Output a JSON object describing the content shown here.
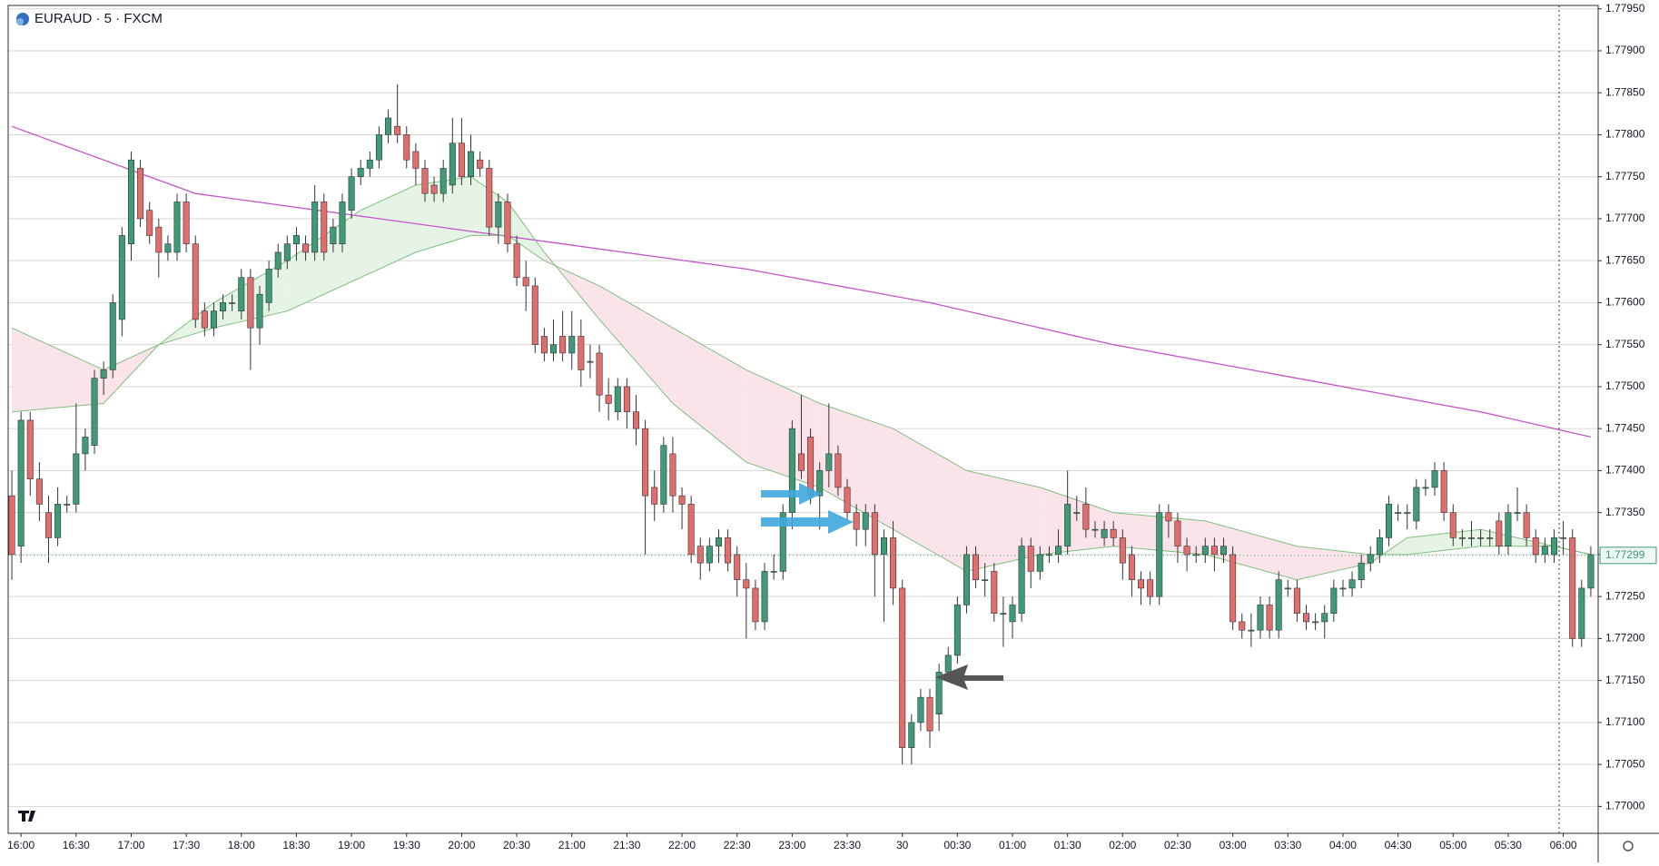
{
  "chart_data": {
    "type": "candlestick",
    "title": "EURAUD · 5 · FXCM",
    "up_color": "#3f9a78",
    "down_color": "#e26d6d",
    "grid": true,
    "band_colors": [
      "#e6f4e6",
      "#fbe3ea"
    ],
    "xlim": [
      -0.4,
      172.8
    ],
    "ylim": [
      1.76968,
      1.77954
    ],
    "yticks": [
      {
        "value": 1.77,
        "label": "1.77000"
      },
      {
        "value": 1.7705,
        "label": "1.77050"
      },
      {
        "value": 1.771,
        "label": "1.77100"
      },
      {
        "value": 1.7715,
        "label": "1.77150"
      },
      {
        "value": 1.772,
        "label": "1.77200"
      },
      {
        "value": 1.7725,
        "label": "1.77250"
      },
      {
        "value": 1.773,
        "label": "1.77300"
      },
      {
        "value": 1.7735,
        "label": "1.77350"
      },
      {
        "value": 1.774,
        "label": "1.77400"
      },
      {
        "value": 1.7745,
        "label": "1.77450"
      },
      {
        "value": 1.775,
        "label": "1.77500"
      },
      {
        "value": 1.7755,
        "label": "1.77550"
      },
      {
        "value": 1.776,
        "label": "1.77600"
      },
      {
        "value": 1.7765,
        "label": "1.77650"
      },
      {
        "value": 1.777,
        "label": "1.77700"
      },
      {
        "value": 1.7775,
        "label": "1.77750"
      },
      {
        "value": 1.778,
        "label": "1.77800"
      },
      {
        "value": 1.7785,
        "label": "1.77850"
      },
      {
        "value": 1.779,
        "label": "1.77900"
      },
      {
        "value": 1.7795,
        "label": "1.77950"
      }
    ],
    "xticks": [
      {
        "value": 1,
        "label": "16:00"
      },
      {
        "value": 7,
        "label": "16:30"
      },
      {
        "value": 13,
        "label": "17:00"
      },
      {
        "value": 19,
        "label": "17:30"
      },
      {
        "value": 25,
        "label": "18:00"
      },
      {
        "value": 31,
        "label": "18:30"
      },
      {
        "value": 37,
        "label": "19:00"
      },
      {
        "value": 43,
        "label": "19:30"
      },
      {
        "value": 49,
        "label": "20:00"
      },
      {
        "value": 55,
        "label": "20:30"
      },
      {
        "value": 61,
        "label": "21:00"
      },
      {
        "value": 67,
        "label": "21:30"
      },
      {
        "value": 73,
        "label": "22:00"
      },
      {
        "value": 79,
        "label": "22:30"
      },
      {
        "value": 85,
        "label": "23:00"
      },
      {
        "value": 91,
        "label": "23:30"
      },
      {
        "value": 97,
        "label": "30"
      },
      {
        "value": 103,
        "label": "00:30"
      },
      {
        "value": 109,
        "label": "01:00"
      },
      {
        "value": 115,
        "label": "01:30"
      },
      {
        "value": 121,
        "label": "02:00"
      },
      {
        "value": 127,
        "label": "02:30"
      },
      {
        "value": 133,
        "label": "03:00"
      },
      {
        "value": 139,
        "label": "03:30"
      },
      {
        "value": 145,
        "label": "04:00"
      },
      {
        "value": 151,
        "label": "04:30"
      },
      {
        "value": 157,
        "label": "05:00"
      },
      {
        "value": 163,
        "label": "05:30"
      },
      {
        "value": 169,
        "label": "06:00"
      }
    ],
    "last_price": 1.77299,
    "candles": [
      [
        1.7737,
        1.774,
        1.7727,
        1.773
      ],
      [
        1.7731,
        1.7747,
        1.7729,
        1.7746
      ],
      [
        1.7746,
        1.7747,
        1.7737,
        1.7739
      ],
      [
        1.7739,
        1.7741,
        1.7734,
        1.7736
      ],
      [
        1.7735,
        1.7737,
        1.7729,
        1.7732
      ],
      [
        1.7732,
        1.7738,
        1.7731,
        1.7736
      ],
      [
        1.7736,
        1.7737,
        1.7735,
        1.7736
      ],
      [
        1.7736,
        1.7748,
        1.7735,
        1.7742
      ],
      [
        1.7742,
        1.7745,
        1.774,
        1.7744
      ],
      [
        1.7743,
        1.7752,
        1.7742,
        1.7751
      ],
      [
        1.7751,
        1.7753,
        1.7749,
        1.7752
      ],
      [
        1.7752,
        1.7761,
        1.7751,
        1.776
      ],
      [
        1.7758,
        1.7769,
        1.7756,
        1.7768
      ],
      [
        1.7767,
        1.7778,
        1.7765,
        1.7777
      ],
      [
        1.7776,
        1.7777,
        1.7769,
        1.777
      ],
      [
        1.7771,
        1.7772,
        1.7767,
        1.7768
      ],
      [
        1.7769,
        1.777,
        1.7763,
        1.7766
      ],
      [
        1.7766,
        1.7768,
        1.7765,
        1.7767
      ],
      [
        1.7766,
        1.7773,
        1.7765,
        1.7772
      ],
      [
        1.7772,
        1.7773,
        1.7766,
        1.7767
      ],
      [
        1.7767,
        1.7768,
        1.7757,
        1.7758
      ],
      [
        1.7759,
        1.776,
        1.7756,
        1.7757
      ],
      [
        1.7757,
        1.776,
        1.7756,
        1.7759
      ],
      [
        1.7759,
        1.7761,
        1.7758,
        1.776
      ],
      [
        1.776,
        1.7761,
        1.7759,
        1.776
      ],
      [
        1.7759,
        1.7764,
        1.7758,
        1.7763
      ],
      [
        1.7763,
        1.7764,
        1.7752,
        1.7757
      ],
      [
        1.7757,
        1.7762,
        1.7755,
        1.7761
      ],
      [
        1.776,
        1.7765,
        1.7759,
        1.7764
      ],
      [
        1.7764,
        1.7767,
        1.7763,
        1.7766
      ],
      [
        1.7765,
        1.7768,
        1.7764,
        1.7767
      ],
      [
        1.7767,
        1.7769,
        1.7765,
        1.7768
      ],
      [
        1.7767,
        1.7768,
        1.7765,
        1.7766
      ],
      [
        1.7766,
        1.7774,
        1.7765,
        1.7772
      ],
      [
        1.7772,
        1.7773,
        1.7765,
        1.7766
      ],
      [
        1.7767,
        1.777,
        1.7766,
        1.7769
      ],
      [
        1.7767,
        1.7773,
        1.7766,
        1.7772
      ],
      [
        1.7771,
        1.7776,
        1.777,
        1.7775
      ],
      [
        1.7775,
        1.7777,
        1.7774,
        1.7776
      ],
      [
        1.7776,
        1.7778,
        1.7775,
        1.7777
      ],
      [
        1.7777,
        1.7781,
        1.7776,
        1.778
      ],
      [
        1.778,
        1.7783,
        1.7779,
        1.7782
      ],
      [
        1.7781,
        1.7786,
        1.7779,
        1.778
      ],
      [
        1.778,
        1.7781,
        1.7776,
        1.7777
      ],
      [
        1.7778,
        1.7779,
        1.7774,
        1.7776
      ],
      [
        1.7776,
        1.7777,
        1.7772,
        1.7773
      ],
      [
        1.7774,
        1.7775,
        1.7772,
        1.7773
      ],
      [
        1.7773,
        1.7777,
        1.7772,
        1.7776
      ],
      [
        1.7774,
        1.7782,
        1.7773,
        1.7779
      ],
      [
        1.7779,
        1.7782,
        1.7774,
        1.7775
      ],
      [
        1.7775,
        1.778,
        1.7774,
        1.7778
      ],
      [
        1.7777,
        1.7778,
        1.7775,
        1.7776
      ],
      [
        1.7776,
        1.7777,
        1.7768,
        1.7769
      ],
      [
        1.7769,
        1.7773,
        1.7767,
        1.7772
      ],
      [
        1.7772,
        1.7773,
        1.7766,
        1.7767
      ],
      [
        1.7767,
        1.7768,
        1.7762,
        1.7763
      ],
      [
        1.7763,
        1.7765,
        1.7759,
        1.7762
      ],
      [
        1.7762,
        1.7763,
        1.7754,
        1.7755
      ],
      [
        1.7756,
        1.7757,
        1.7753,
        1.7754
      ],
      [
        1.7754,
        1.7758,
        1.7753,
        1.7755
      ],
      [
        1.7756,
        1.7759,
        1.7753,
        1.7754
      ],
      [
        1.7754,
        1.7759,
        1.7752,
        1.7756
      ],
      [
        1.7756,
        1.7758,
        1.775,
        1.7752
      ],
      [
        1.7753,
        1.7755,
        1.7751,
        1.7753
      ],
      [
        1.7754,
        1.7755,
        1.7747,
        1.7749
      ],
      [
        1.7749,
        1.7751,
        1.7746,
        1.7748
      ],
      [
        1.7747,
        1.7751,
        1.7746,
        1.775
      ],
      [
        1.775,
        1.7751,
        1.7745,
        1.7747
      ],
      [
        1.7747,
        1.7749,
        1.7743,
        1.7745
      ],
      [
        1.7745,
        1.7746,
        1.773,
        1.7737
      ],
      [
        1.7738,
        1.774,
        1.7734,
        1.7736
      ],
      [
        1.7736,
        1.7744,
        1.7735,
        1.7743
      ],
      [
        1.7742,
        1.7744,
        1.7735,
        1.7737
      ],
      [
        1.7737,
        1.7738,
        1.7733,
        1.7736
      ],
      [
        1.7736,
        1.7737,
        1.7729,
        1.773
      ],
      [
        1.7731,
        1.7732,
        1.7727,
        1.7729
      ],
      [
        1.7729,
        1.7732,
        1.7728,
        1.7731
      ],
      [
        1.7731,
        1.7733,
        1.7729,
        1.7732
      ],
      [
        1.7732,
        1.7733,
        1.7728,
        1.7729
      ],
      [
        1.773,
        1.7731,
        1.7725,
        1.7727
      ],
      [
        1.7727,
        1.7729,
        1.772,
        1.7726
      ],
      [
        1.7726,
        1.7727,
        1.7721,
        1.7722
      ],
      [
        1.7722,
        1.7729,
        1.7721,
        1.7728
      ],
      [
        1.7728,
        1.773,
        1.7727,
        1.7728
      ],
      [
        1.7728,
        1.7736,
        1.7727,
        1.7735
      ],
      [
        1.7735,
        1.7746,
        1.7733,
        1.7745
      ],
      [
        1.7742,
        1.7749,
        1.7739,
        1.774
      ],
      [
        1.7744,
        1.7745,
        1.7736,
        1.7737
      ],
      [
        1.7737,
        1.7741,
        1.7733,
        1.774
      ],
      [
        1.774,
        1.7748,
        1.7738,
        1.7742
      ],
      [
        1.7742,
        1.7743,
        1.7737,
        1.7738
      ],
      [
        1.7738,
        1.7739,
        1.7734,
        1.7735
      ],
      [
        1.7735,
        1.7736,
        1.7731,
        1.7733
      ],
      [
        1.7733,
        1.7736,
        1.7731,
        1.7735
      ],
      [
        1.7735,
        1.7736,
        1.7725,
        1.773
      ],
      [
        1.773,
        1.7733,
        1.7722,
        1.7732
      ],
      [
        1.7732,
        1.7734,
        1.7724,
        1.7726
      ],
      [
        1.7726,
        1.7727,
        1.7705,
        1.7707
      ],
      [
        1.7707,
        1.7711,
        1.7705,
        1.771
      ],
      [
        1.771,
        1.7714,
        1.7709,
        1.7713
      ],
      [
        1.7713,
        1.7714,
        1.7707,
        1.7709
      ],
      [
        1.7711,
        1.7717,
        1.7709,
        1.7716
      ],
      [
        1.7716,
        1.7719,
        1.7715,
        1.7718
      ],
      [
        1.7718,
        1.7725,
        1.7717,
        1.7724
      ],
      [
        1.7724,
        1.7731,
        1.7723,
        1.773
      ],
      [
        1.773,
        1.7731,
        1.7726,
        1.7727
      ],
      [
        1.7727,
        1.7729,
        1.7725,
        1.7727
      ],
      [
        1.7728,
        1.7729,
        1.7722,
        1.7723
      ],
      [
        1.7723,
        1.7725,
        1.7719,
        1.7723
      ],
      [
        1.7722,
        1.7725,
        1.772,
        1.7724
      ],
      [
        1.7723,
        1.7732,
        1.7722,
        1.7731
      ],
      [
        1.7731,
        1.7732,
        1.7726,
        1.7728
      ],
      [
        1.7728,
        1.7731,
        1.7727,
        1.773
      ],
      [
        1.773,
        1.7731,
        1.7729,
        1.773
      ],
      [
        1.773,
        1.7733,
        1.7729,
        1.7731
      ],
      [
        1.7731,
        1.774,
        1.773,
        1.7736
      ],
      [
        1.7735,
        1.7737,
        1.7734,
        1.7735
      ],
      [
        1.7736,
        1.7738,
        1.7732,
        1.7733
      ],
      [
        1.7733,
        1.7734,
        1.7732,
        1.7733
      ],
      [
        1.7732,
        1.7734,
        1.7731,
        1.7733
      ],
      [
        1.7733,
        1.7734,
        1.7731,
        1.7732
      ],
      [
        1.7732,
        1.7733,
        1.7727,
        1.7729
      ],
      [
        1.773,
        1.7731,
        1.7725,
        1.7727
      ],
      [
        1.7727,
        1.7728,
        1.7724,
        1.7726
      ],
      [
        1.7727,
        1.7728,
        1.7724,
        1.7725
      ],
      [
        1.7725,
        1.7736,
        1.7724,
        1.7735
      ],
      [
        1.7735,
        1.7736,
        1.7732,
        1.7734
      ],
      [
        1.7734,
        1.7735,
        1.7729,
        1.7731
      ],
      [
        1.7731,
        1.7732,
        1.7728,
        1.773
      ],
      [
        1.773,
        1.7731,
        1.7729,
        1.773
      ],
      [
        1.773,
        1.7732,
        1.7729,
        1.7731
      ],
      [
        1.7731,
        1.7732,
        1.7728,
        1.773
      ],
      [
        1.773,
        1.7732,
        1.7729,
        1.7731
      ],
      [
        1.773,
        1.7731,
        1.7721,
        1.7722
      ],
      [
        1.7722,
        1.7723,
        1.772,
        1.7721
      ],
      [
        1.7721,
        1.7723,
        1.7719,
        1.7721
      ],
      [
        1.7721,
        1.7725,
        1.772,
        1.7724
      ],
      [
        1.7724,
        1.7725,
        1.772,
        1.7721
      ],
      [
        1.7721,
        1.7728,
        1.772,
        1.7727
      ],
      [
        1.7726,
        1.7727,
        1.7725,
        1.7726
      ],
      [
        1.7726,
        1.7727,
        1.7722,
        1.7723
      ],
      [
        1.7723,
        1.7724,
        1.7721,
        1.7722
      ],
      [
        1.7722,
        1.7723,
        1.7721,
        1.7722
      ],
      [
        1.7722,
        1.7724,
        1.772,
        1.7723
      ],
      [
        1.7723,
        1.7727,
        1.7722,
        1.7726
      ],
      [
        1.7726,
        1.7727,
        1.7725,
        1.7726
      ],
      [
        1.7726,
        1.7728,
        1.7725,
        1.7727
      ],
      [
        1.7727,
        1.773,
        1.7726,
        1.7729
      ],
      [
        1.7729,
        1.7731,
        1.7728,
        1.773
      ],
      [
        1.773,
        1.7733,
        1.7729,
        1.7732
      ],
      [
        1.7732,
        1.7737,
        1.7731,
        1.7736
      ],
      [
        1.7735,
        1.7736,
        1.7734,
        1.7735
      ],
      [
        1.7735,
        1.7736,
        1.7733,
        1.7735
      ],
      [
        1.7734,
        1.7739,
        1.7733,
        1.7738
      ],
      [
        1.7738,
        1.7739,
        1.7737,
        1.7738
      ],
      [
        1.7738,
        1.7741,
        1.7737,
        1.774
      ],
      [
        1.774,
        1.7741,
        1.7734,
        1.7735
      ],
      [
        1.7735,
        1.7736,
        1.7731,
        1.7732
      ],
      [
        1.7732,
        1.7733,
        1.7731,
        1.7732
      ],
      [
        1.7732,
        1.7734,
        1.7731,
        1.7732
      ],
      [
        1.7732,
        1.7733,
        1.7731,
        1.7732
      ],
      [
        1.7732,
        1.7733,
        1.7731,
        1.7732
      ],
      [
        1.7734,
        1.7735,
        1.773,
        1.7731
      ],
      [
        1.7731,
        1.7736,
        1.773,
        1.7735
      ],
      [
        1.7735,
        1.7738,
        1.7734,
        1.7735
      ],
      [
        1.7735,
        1.7736,
        1.7731,
        1.7732
      ],
      [
        1.7732,
        1.7733,
        1.7729,
        1.773
      ],
      [
        1.773,
        1.7732,
        1.7729,
        1.7731
      ],
      [
        1.773,
        1.7733,
        1.7729,
        1.7732
      ],
      [
        1.7732,
        1.7734,
        1.773,
        1.7732
      ],
      [
        1.7732,
        1.7733,
        1.7719,
        1.772
      ],
      [
        1.772,
        1.7727,
        1.7719,
        1.7726
      ],
      [
        1.7726,
        1.7731,
        1.7725,
        1.773
      ]
    ],
    "series": [
      {
        "color": "#c353c9",
        "x": [
          0,
          20,
          40,
          60,
          80,
          100,
          120,
          140,
          160,
          172
        ],
        "values": [
          1.7781,
          1.7773,
          1.777,
          1.7767,
          1.7764,
          1.776,
          1.7755,
          1.7751,
          1.7747,
          1.7744
        ]
      },
      {
        "color": "#7fbf7f",
        "x": [
          0,
          10,
          16,
          22,
          30,
          38,
          44,
          50,
          54,
          58,
          64,
          72,
          80,
          88,
          96,
          104,
          112,
          120,
          130,
          140,
          148,
          152,
          160,
          168,
          172
        ],
        "values": [
          1.7747,
          1.7748,
          1.7755,
          1.776,
          1.7765,
          1.7771,
          1.7774,
          1.7775,
          1.7772,
          1.7766,
          1.7758,
          1.7748,
          1.7741,
          1.7738,
          1.7733,
          1.7728,
          1.773,
          1.7731,
          1.773,
          1.7727,
          1.7729,
          1.7732,
          1.7733,
          1.7731,
          1.773
        ]
      },
      {
        "color": "#7fbf7f",
        "x": [
          0,
          10,
          16,
          22,
          30,
          38,
          44,
          50,
          54,
          58,
          64,
          72,
          80,
          88,
          96,
          104,
          112,
          120,
          130,
          140,
          148,
          152,
          160,
          168,
          172
        ],
        "values": [
          1.7757,
          1.7752,
          1.7755,
          1.7757,
          1.7759,
          1.7763,
          1.7766,
          1.7768,
          1.7768,
          1.7765,
          1.7762,
          1.7757,
          1.7752,
          1.7748,
          1.7745,
          1.774,
          1.7738,
          1.7735,
          1.7734,
          1.7731,
          1.773,
          1.773,
          1.7731,
          1.7731,
          1.773
        ]
      }
    ]
  }
}
